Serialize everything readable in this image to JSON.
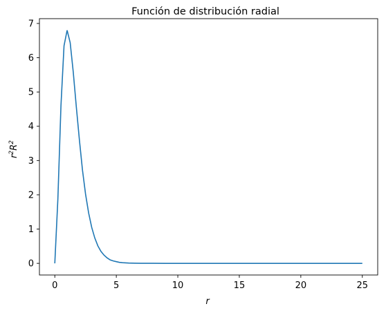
{
  "chart_data": {
    "type": "line",
    "title": "Función de distribución radial",
    "xlabel": "r",
    "ylabel_base": "r",
    "ylabel_sup1": "2",
    "ylabel_mid": "R",
    "ylabel_sup2": "2",
    "xlim": [
      -1.25,
      26.25
    ],
    "ylim": [
      -0.34,
      7.14
    ],
    "xticks": [
      0,
      5,
      10,
      15,
      20,
      25
    ],
    "xtick_labels": [
      "0",
      "5",
      "10",
      "15",
      "20",
      "25"
    ],
    "yticks": [
      0,
      1,
      2,
      3,
      4,
      5,
      6,
      7
    ],
    "ytick_labels": [
      "0",
      "1",
      "2",
      "3",
      "4",
      "5",
      "6",
      "7"
    ],
    "grid": false,
    "line_color": "#1f77b4",
    "series": [
      {
        "x": [
          0,
          0.25,
          0.5,
          0.75,
          1.0,
          1.25,
          1.5,
          1.75,
          2.0,
          2.25,
          2.5,
          2.75,
          3.0,
          3.25,
          3.5,
          3.75,
          4.0,
          4.25,
          4.5,
          4.75,
          5.0,
          5.25,
          5.5,
          5.75,
          6.0,
          6.5,
          7.0,
          8.0,
          9.0,
          10,
          12.5,
          15,
          17.5,
          20,
          22.5,
          25
        ],
        "y": [
          0,
          1.88,
          4.6,
          6.35,
          6.8,
          6.44,
          5.58,
          4.56,
          3.6,
          2.72,
          2.02,
          1.47,
          1.05,
          0.74,
          0.51,
          0.35,
          0.24,
          0.16,
          0.1,
          0.07,
          0.05,
          0.03,
          0.02,
          0.015,
          0.01,
          0.005,
          0.002,
          0.001,
          0,
          0,
          0,
          0,
          0,
          0,
          0,
          0
        ]
      }
    ]
  }
}
